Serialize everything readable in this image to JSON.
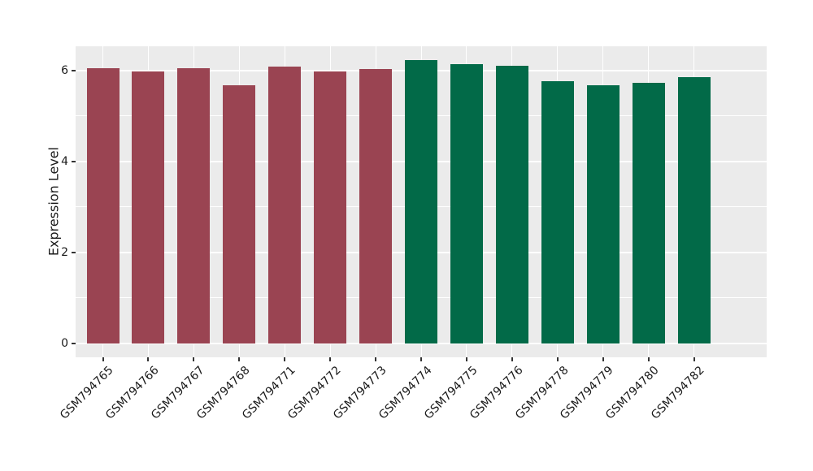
{
  "figure": {
    "background": "#FFFFFF"
  },
  "panel": {
    "background": "#EBEBEB",
    "gridline_color": "#FFFFFF",
    "tick_color": "#333333",
    "text_color": "#1A1A1A"
  },
  "chart_data": {
    "type": "bar",
    "title": "",
    "xlabel": "",
    "ylabel": "Expression Level",
    "categories": [
      "GSM794765",
      "GSM794766",
      "GSM794767",
      "GSM794768",
      "GSM794771",
      "GSM794772",
      "GSM794773",
      "GSM794774",
      "GSM794775",
      "GSM794776",
      "GSM794778",
      "GSM794779",
      "GSM794780",
      "GSM794782"
    ],
    "values": [
      6.05,
      5.99,
      6.05,
      5.68,
      6.09,
      5.99,
      6.04,
      6.23,
      6.14,
      6.11,
      5.77,
      5.67,
      5.73,
      5.85
    ],
    "groups": [
      "1",
      "1",
      "1",
      "1",
      "1",
      "1",
      "1",
      "2",
      "2",
      "2",
      "2",
      "2",
      "2",
      "2"
    ],
    "group_colors": {
      "1": "#9A4452",
      "2": "#026A48"
    },
    "yticks": [
      0,
      2,
      4,
      6
    ],
    "minor_gridlines": [
      1,
      3,
      5
    ],
    "ylim": [
      -0.3,
      6.53
    ],
    "bar_rel_width": 0.72,
    "x_label_rotation_deg": 45,
    "grid": "on",
    "legend": "none"
  }
}
